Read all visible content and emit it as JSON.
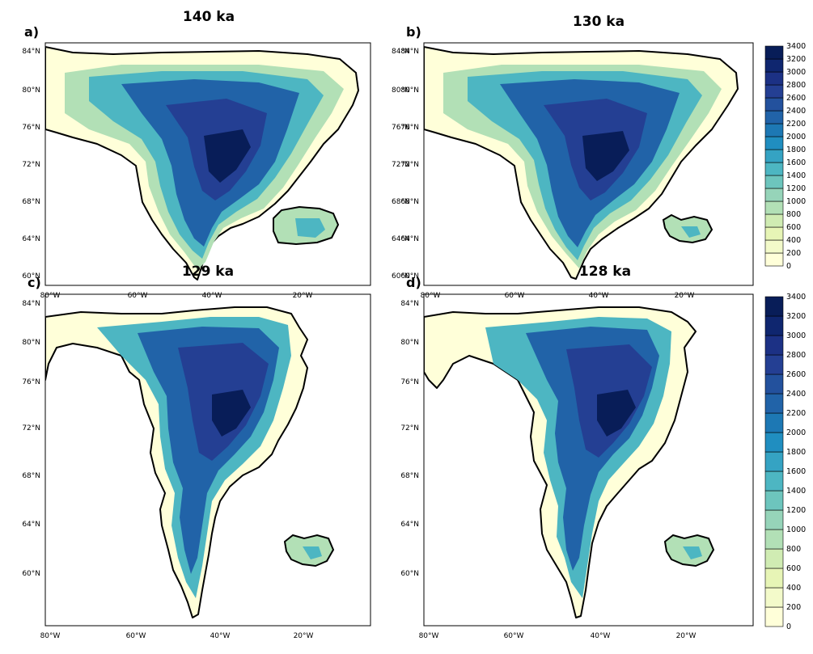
{
  "figure": {
    "colorbar": {
      "label_values": [
        "3400",
        "3200",
        "3000",
        "2800",
        "2600",
        "2400",
        "2200",
        "2000",
        "1800",
        "1600",
        "1400",
        "1200",
        "1000",
        "800",
        "600",
        "400",
        "200",
        "0"
      ],
      "colors": [
        "#ffffd9",
        "#f3faca",
        "#e7f5b6",
        "#d0ecb3",
        "#b2e0b6",
        "#96d4b9",
        "#6dc5bd",
        "#4db6c2",
        "#35a3c3",
        "#208ec0",
        "#1d78b4",
        "#2163a8",
        "#23519d",
        "#243f93",
        "#1c3185",
        "#0f266f",
        "#081d58"
      ]
    },
    "lon_labels": [
      "80°W",
      "60°W",
      "40°W",
      "20°W"
    ],
    "lat_labels": [
      "84°N",
      "80°N",
      "76°N",
      "72°N",
      "68°N",
      "64°N",
      "60°N"
    ],
    "panels": [
      {
        "letter": "a)",
        "title": "140 ka",
        "stage": 0
      },
      {
        "letter": "b)",
        "title": "130 ka",
        "stage": 1
      },
      {
        "letter": "c)",
        "title": "129 ka",
        "stage": 2
      },
      {
        "letter": "d)",
        "title": "128 ka",
        "stage": 3
      }
    ]
  }
}
